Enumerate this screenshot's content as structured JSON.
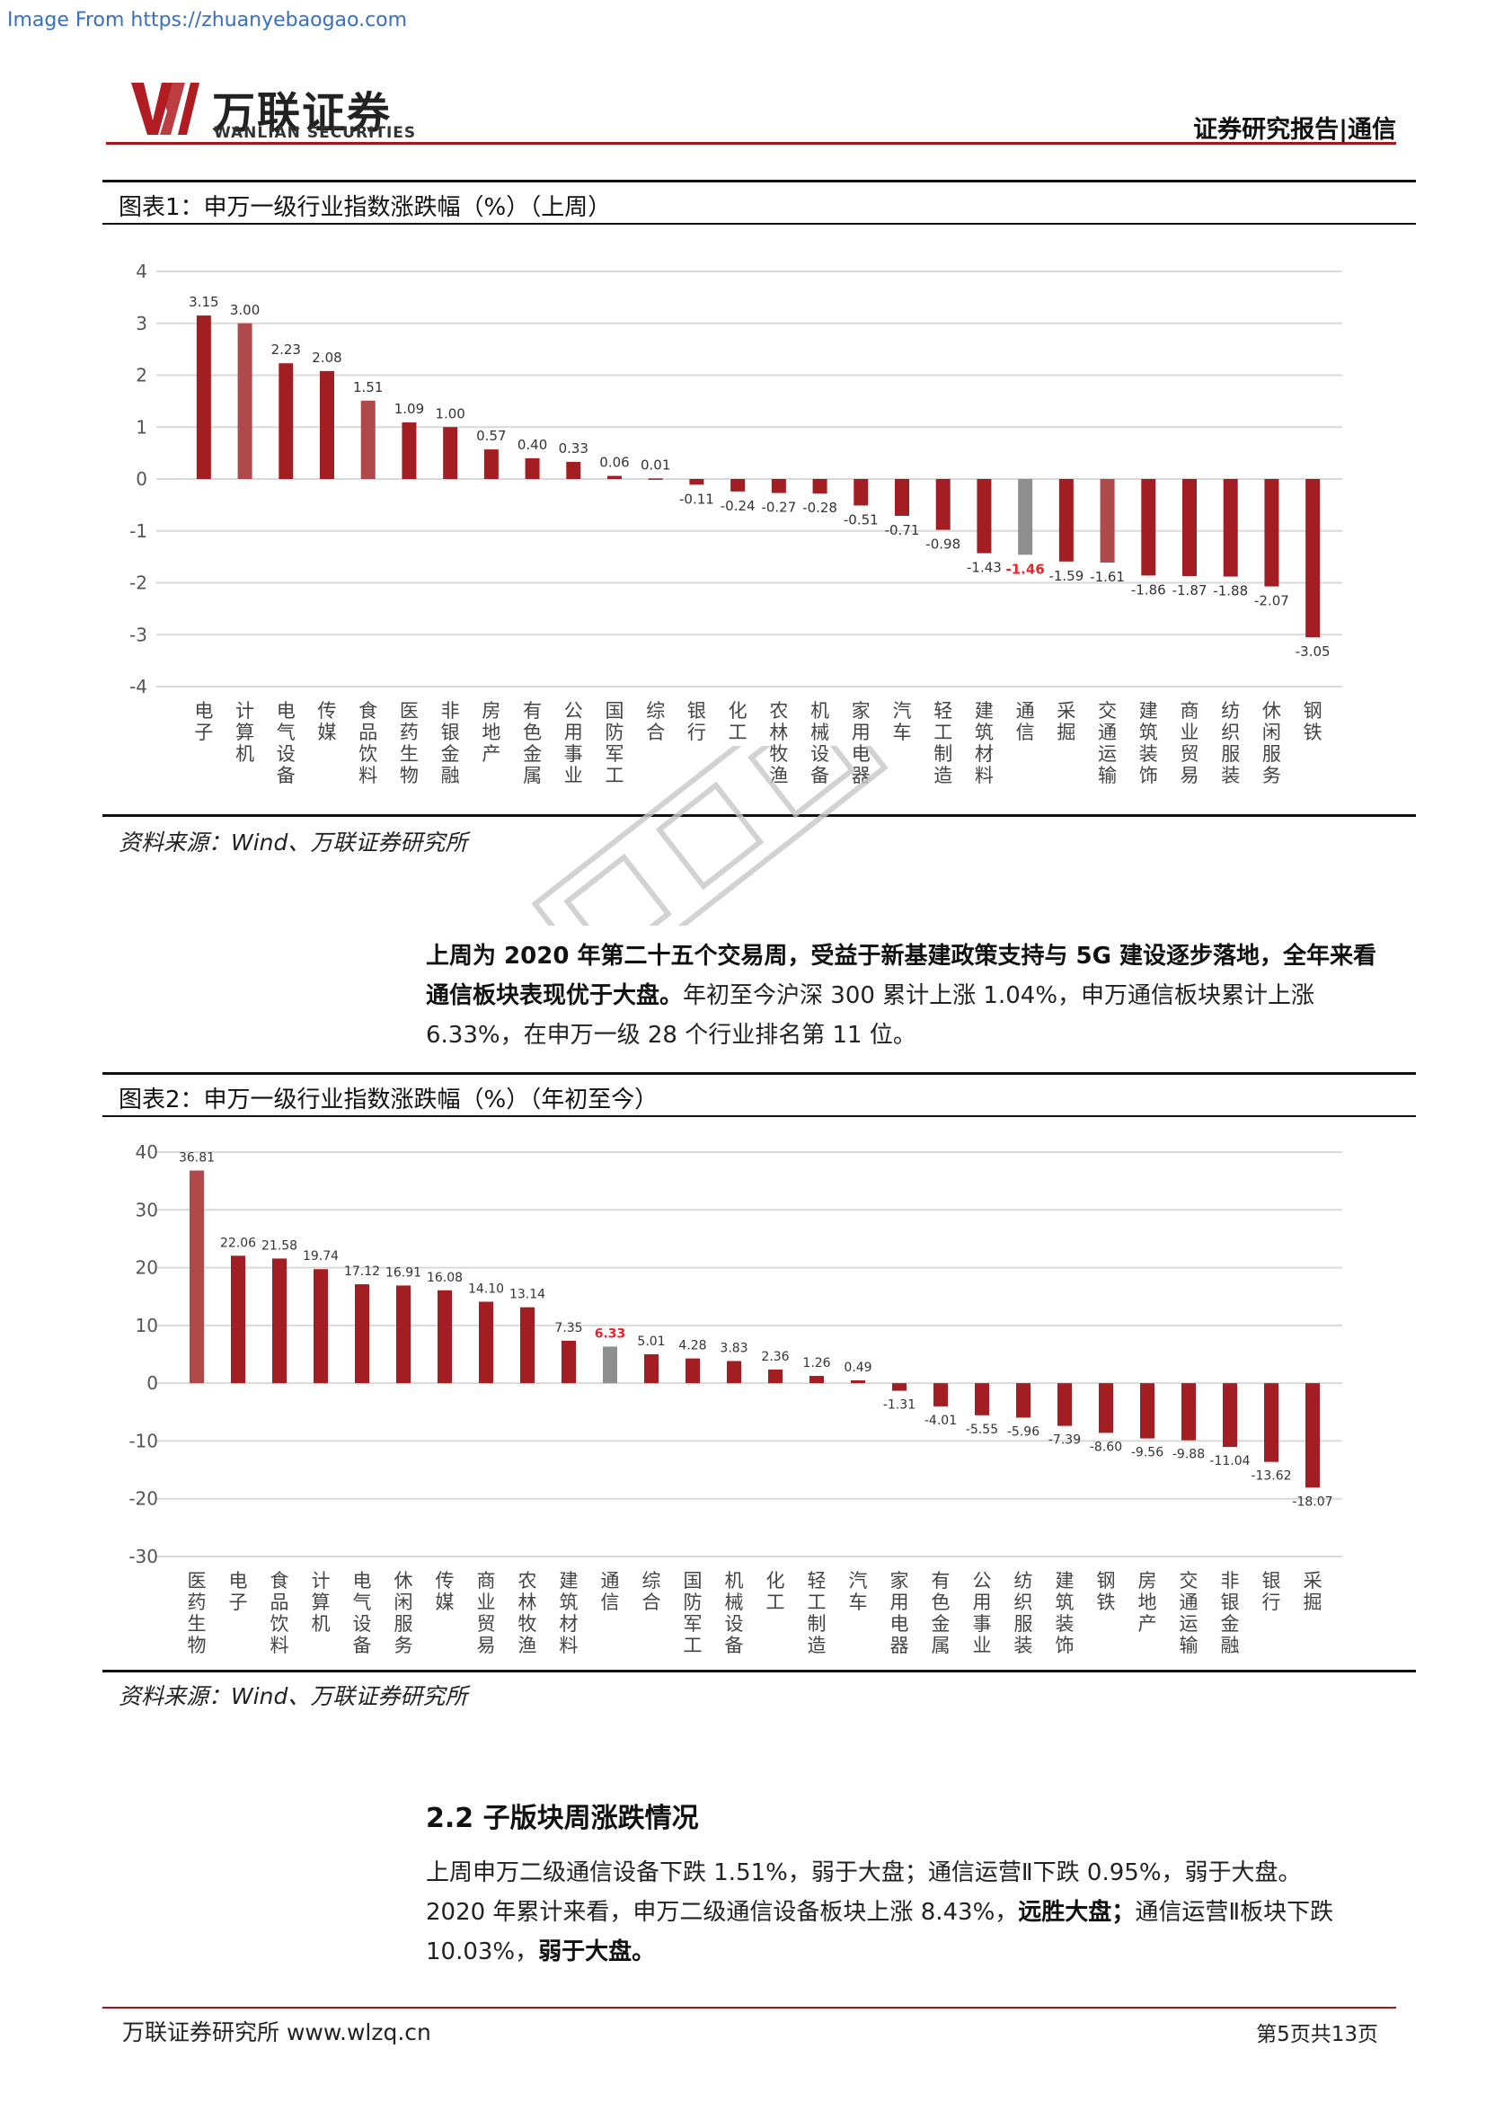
{
  "source_note": "Image From https://zhuanyebaogao.com",
  "header": {
    "brand_cn": "万联证券",
    "brand_en": "WANLIAN SECURITIES",
    "report_type": "证券研究报告|通信"
  },
  "figure1": {
    "title": "图表1：申万一级行业指数涨跌幅（%）（上周）",
    "source": "资料来源：Wind、万联证券研究所"
  },
  "paragraph1": {
    "bold": "上周为 2020 年第二十五个交易周，受益于新基建政策支持与 5G 建设逐步落地，全年来看通信板块表现优于大盘。",
    "rest": "年初至今沪深 300 累计上涨 1.04%，申万通信板块累计上涨 6.33%，在申万一级 28 个行业排名第 11 位。"
  },
  "figure2": {
    "title": "图表2：申万一级行业指数涨跌幅（%）（年初至今）",
    "source": "资料来源：Wind、万联证券研究所"
  },
  "section": {
    "title": "2.2 子版块周涨跌情况",
    "p1": "上周申万二级通信设备下跌 1.51%，弱于大盘；通信运营Ⅱ下跌 0.95%，弱于大盘。",
    "p2a": "2020 年累计来看，申万二级通信设备板块上涨 8.43%，",
    "p2b": "远胜大盘；",
    "p2c": "通信运营Ⅱ板块下跌 10.03%，",
    "p2d": "弱于大盘。"
  },
  "footer": {
    "left": "万联证券研究所 www.wlzq.cn",
    "right": "第5页共13页"
  },
  "colors": {
    "dark_red": "#a31e22",
    "light_red": "#b04a4a",
    "gray": "#8f8f8f",
    "highlight": "#e8232a"
  },
  "chart_data": [
    {
      "type": "bar",
      "categories": [
        "电子",
        "计算机",
        "电气设备",
        "传媒",
        "食品饮料",
        "医药生物",
        "非银金融",
        "房地产",
        "有色金属",
        "公用事业",
        "国防军工",
        "综合",
        "银行",
        "化工",
        "农林牧渔",
        "机械设备",
        "家用电器",
        "汽车",
        "轻工制造",
        "建筑材料",
        "通信",
        "采掘",
        "交通运输",
        "建筑装饰",
        "商业贸易",
        "纺织服装",
        "休闲服务",
        "钢铁"
      ],
      "values": [
        3.15,
        3.0,
        2.23,
        2.08,
        1.51,
        1.09,
        1.0,
        0.57,
        0.4,
        0.33,
        0.06,
        0.01,
        -0.11,
        -0.24,
        -0.27,
        -0.28,
        -0.51,
        -0.71,
        -0.98,
        -1.43,
        -1.46,
        -1.59,
        -1.61,
        -1.86,
        -1.87,
        -1.88,
        -2.07,
        -3.05
      ],
      "value_labels": [
        "3.15",
        "3.00",
        "2.23",
        "2.08",
        "1.51",
        "1.09",
        "1.00",
        "0.57",
        "0.40",
        "0.33",
        "0.06",
        "0.01",
        "-0.11",
        "-0.24",
        "-0.27",
        "-0.28",
        "-0.51",
        "-0.71",
        "-0.98",
        "-1.43",
        "-1.46",
        "-1.59",
        "-1.61",
        "-1.86",
        "-1.87",
        "-1.88",
        "-2.07",
        "-3.05"
      ],
      "bar_colors": [
        "#a31e22",
        "#b04a4a",
        "#a31e22",
        "#a31e22",
        "#b04a4a",
        "#a31e22",
        "#a31e22",
        "#a31e22",
        "#a31e22",
        "#a31e22",
        "#a31e22",
        "#a31e22",
        "#a31e22",
        "#a31e22",
        "#a31e22",
        "#a31e22",
        "#a31e22",
        "#a31e22",
        "#a31e22",
        "#a31e22",
        "#8f8f8f",
        "#a31e22",
        "#b04a4a",
        "#a31e22",
        "#a31e22",
        "#a31e22",
        "#a31e22",
        "#a31e22"
      ],
      "highlight_index": 20,
      "yticks": [
        4,
        3,
        2,
        1,
        0,
        -1,
        -2,
        -3,
        -4
      ],
      "ylim": [
        -4,
        4
      ],
      "grid": true
    },
    {
      "type": "bar",
      "categories": [
        "医药生物",
        "电子",
        "食品饮料",
        "计算机",
        "电气设备",
        "休闲服务",
        "传媒",
        "商业贸易",
        "农林牧渔",
        "建筑材料",
        "通信",
        "综合",
        "国防军工",
        "机械设备",
        "化工",
        "轻工制造",
        "汽车",
        "家用电器",
        "有色金属",
        "公用事业",
        "纺织服装",
        "建筑装饰",
        "钢铁",
        "房地产",
        "交通运输",
        "非银金融",
        "银行",
        "采掘"
      ],
      "values": [
        36.81,
        22.06,
        21.58,
        19.74,
        17.12,
        16.91,
        16.08,
        14.1,
        13.14,
        7.35,
        6.33,
        5.01,
        4.28,
        3.83,
        2.36,
        1.26,
        0.49,
        -1.31,
        -4.01,
        -5.55,
        -5.96,
        -7.39,
        -8.6,
        -9.56,
        -9.88,
        -11.04,
        -13.62,
        -18.07
      ],
      "value_labels": [
        "36.81",
        "22.06",
        "21.58",
        "19.74",
        "17.12",
        "16.91",
        "16.08",
        "14.10",
        "13.14",
        "7.35",
        "6.33",
        "5.01",
        "4.28",
        "3.83",
        "2.36",
        "1.26",
        "0.49",
        "-1.31",
        "-4.01",
        "-5.55",
        "-5.96",
        "-7.39",
        "-8.60",
        "-9.56",
        "-9.88",
        "-11.04",
        "-13.62",
        "-18.07"
      ],
      "bar_colors": [
        "#b04a4a",
        "#a31e22",
        "#a31e22",
        "#a31e22",
        "#a31e22",
        "#a31e22",
        "#a31e22",
        "#a31e22",
        "#a31e22",
        "#a31e22",
        "#8f8f8f",
        "#a31e22",
        "#a31e22",
        "#a31e22",
        "#a31e22",
        "#a31e22",
        "#a31e22",
        "#a31e22",
        "#a31e22",
        "#a31e22",
        "#a31e22",
        "#a31e22",
        "#a31e22",
        "#a31e22",
        "#a31e22",
        "#a31e22",
        "#a31e22",
        "#a31e22"
      ],
      "highlight_index": 10,
      "yticks": [
        40,
        30,
        20,
        10,
        0,
        -10,
        -20,
        -30
      ],
      "ylim": [
        -30,
        40
      ],
      "grid": true
    }
  ]
}
